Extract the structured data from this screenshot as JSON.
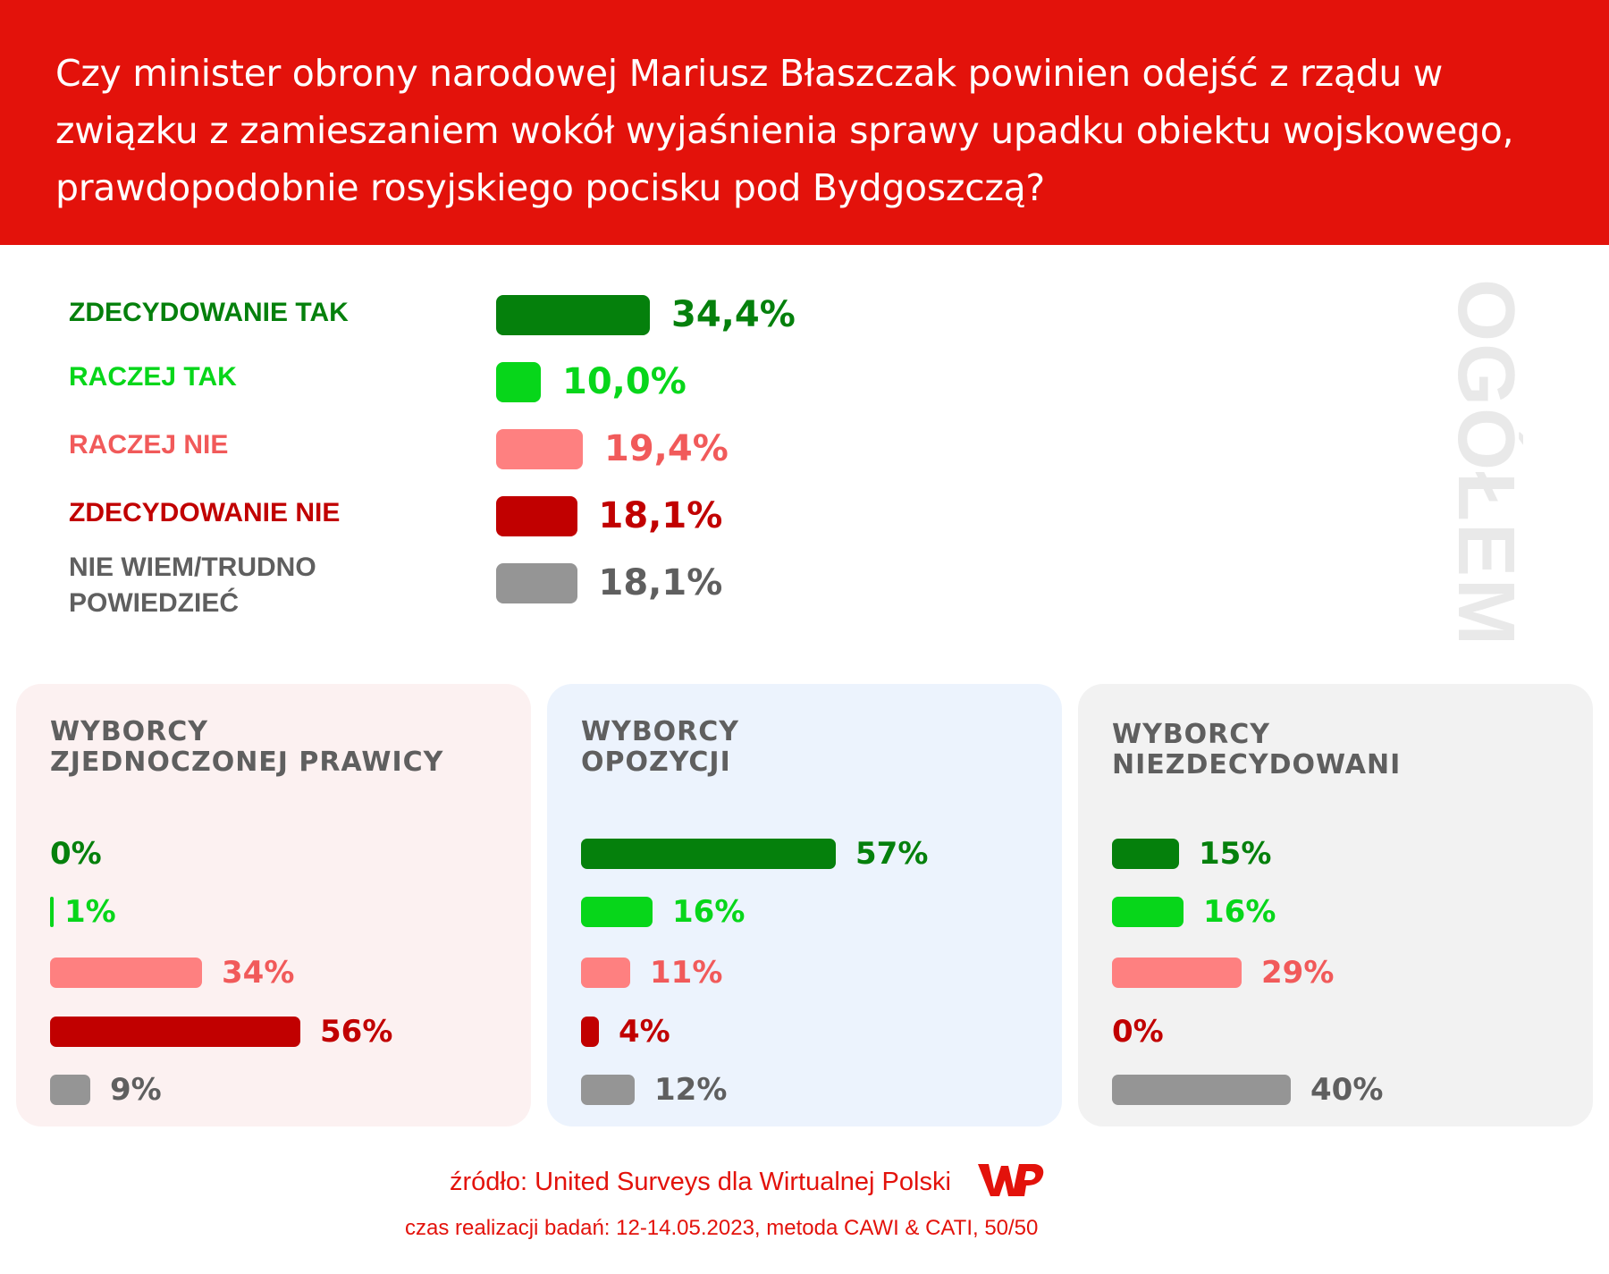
{
  "title": "Czy minister obrony narodowej Mariusz Błaszczak powinien odejść z rządu w związku z zamieszaniem wokół wyjaśnienia sprawy upadku obiektu wojskowego, prawdopodobnie rosyjskiego pocisku pod Bydgoszczą?",
  "vertical_label": "OGÓŁEM",
  "colors": {
    "header": "#e3120b",
    "strong_yes": "#05800c",
    "rather_yes": "#07d61a",
    "rather_no": "#fe8080",
    "strong_no": "#c10000",
    "dont_know": "#959595",
    "rather_no_text": "#f15a5a",
    "dont_know_text": "#5f5f5f",
    "panel_right": "#fcf1f1",
    "panel_opposition": "#ecf3fd",
    "panel_undecided": "#f2f2f2"
  },
  "chart_data": [
    {
      "type": "bar",
      "orientation": "horizontal",
      "group": "OGÓŁEM",
      "categories": [
        "ZDECYDOWANIE TAK",
        "RACZEJ TAK",
        "RACZEJ NIE",
        "ZDECYDOWANIE NIE",
        "NIE WIEM/TRUDNO POWIEDZIEĆ"
      ],
      "values": [
        34.4,
        10.0,
        19.4,
        18.1,
        18.1
      ],
      "value_labels": [
        "34,4%",
        "10,0%",
        "19,4%",
        "18,1%",
        "18,1%"
      ],
      "unit": "%"
    },
    {
      "type": "bar",
      "orientation": "horizontal",
      "title": "WYBORCY ZJEDNOCZONEJ PRAWICY",
      "categories": [
        "ZDECYDOWANIE TAK",
        "RACZEJ TAK",
        "RACZEJ NIE",
        "ZDECYDOWANIE NIE",
        "NIE WIEM/TRUDNO POWIEDZIEĆ"
      ],
      "values": [
        0,
        1,
        34,
        56,
        9
      ],
      "value_labels": [
        "0%",
        "1%",
        "34%",
        "56%",
        "9%"
      ],
      "unit": "%"
    },
    {
      "type": "bar",
      "orientation": "horizontal",
      "title": "WYBORCY OPOZYCJI",
      "categories": [
        "ZDECYDOWANIE TAK",
        "RACZEJ TAK",
        "RACZEJ NIE",
        "ZDECYDOWANIE NIE",
        "NIE WIEM/TRUDNO POWIEDZIEĆ"
      ],
      "values": [
        57,
        16,
        11,
        4,
        12
      ],
      "value_labels": [
        "57%",
        "16%",
        "11%",
        "4%",
        "12%"
      ],
      "unit": "%"
    },
    {
      "type": "bar",
      "orientation": "horizontal",
      "title": "WYBORCY NIEZDECYDOWANI",
      "categories": [
        "ZDECYDOWANIE TAK",
        "RACZEJ TAK",
        "RACZEJ NIE",
        "ZDECYDOWANIE NIE",
        "NIE WIEM/TRUDNO POWIEDZIEĆ"
      ],
      "values": [
        15,
        16,
        29,
        0,
        40
      ],
      "value_labels": [
        "15%",
        "16%",
        "29%",
        "0%",
        "40%"
      ],
      "unit": "%"
    }
  ],
  "main_labels": {
    "l0": "ZDECYDOWANIE TAK",
    "l1": "RACZEJ TAK",
    "l2": "RACZEJ NIE",
    "l3": "ZDECYDOWANIE NIE",
    "l4a": "NIE WIEM/TRUDNO",
    "l4b": "POWIEDZIEĆ"
  },
  "panels": {
    "right": {
      "title_a": "WYBORCY",
      "title_b": "ZJEDNOCZONEJ PRAWICY"
    },
    "opposition": {
      "title_a": "WYBORCY",
      "title_b": "OPOZYCJI"
    },
    "undecided": {
      "title_a": "WYBORCY",
      "title_b": "NIEZDECYDOWANI"
    }
  },
  "footer": {
    "source": "źródło: United Surveys dla Wirtualnej Polski",
    "method": "czas realizacji badań: 12-14.05.2023, metoda CAWI & CATI, 50/50",
    "logo_text": "WP"
  }
}
